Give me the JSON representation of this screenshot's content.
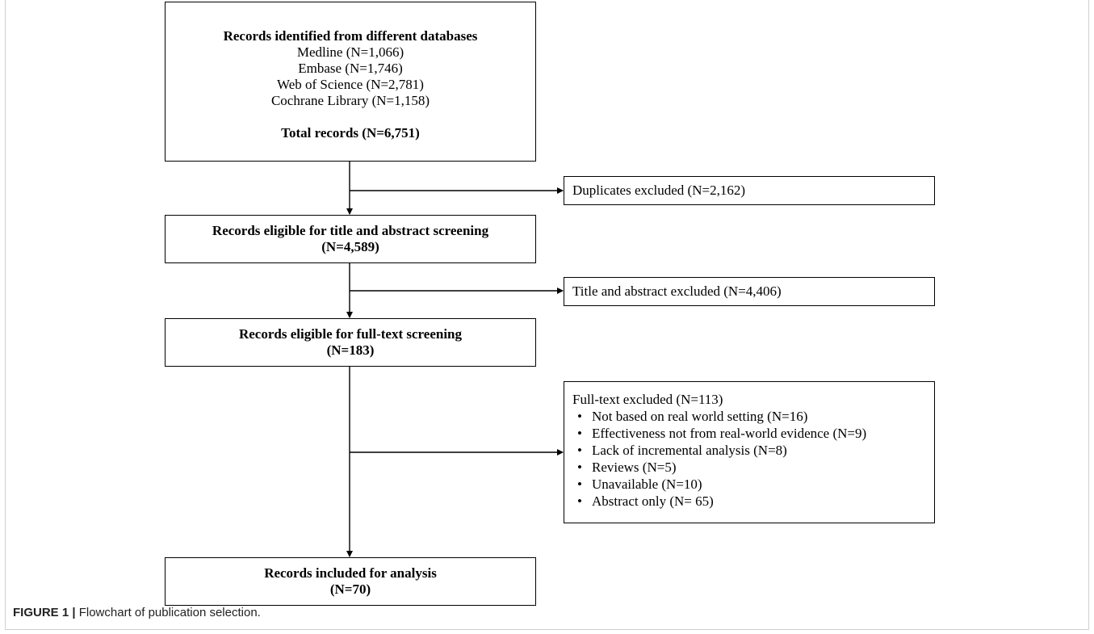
{
  "identified": {
    "title": "Records identified from different databases",
    "databases": [
      "Medline (N=1,066)",
      "Embase (N=1,746)",
      "Web of Science (N=2,781)",
      "Cochrane Library (N=1,158)"
    ],
    "total": "Total records (N=6,751)"
  },
  "duplicates": {
    "label": "Duplicates excluded (N=2,162)"
  },
  "screening": {
    "title": "Records eligible for title and abstract screening",
    "count": "(N=4,589)"
  },
  "abstract_excluded": {
    "label": "Title and abstract excluded (N=4,406)"
  },
  "fulltext": {
    "title": "Records eligible for full-text screening",
    "count": "(N=183)"
  },
  "fulltext_excluded": {
    "title": "Full-text excluded (N=113)",
    "reasons": [
      "Not based on real world setting (N=16)",
      "Effectiveness not from real-world evidence (N=9)",
      "Lack of incremental analysis (N=8)",
      "Reviews (N=5)",
      "Unavailable (N=10)",
      "Abstract only (N= 65)"
    ]
  },
  "included": {
    "title": "Records included for analysis",
    "count": "(N=70)"
  },
  "caption": {
    "label": "FIGURE 1 |",
    "text": " Flowchart of publication selection."
  }
}
